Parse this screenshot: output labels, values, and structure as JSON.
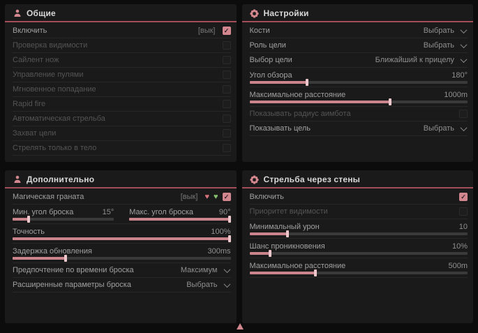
{
  "theme": {
    "accent": "#d2868e",
    "header_underline": "#a14e58",
    "panel_bg": "#1a1a1a",
    "page_bg": "#0c0c0c"
  },
  "panels": [
    {
      "title": "Общие",
      "icon": "person-icon",
      "rows": [
        {
          "type": "toggle",
          "label": "Включить",
          "tag": "[вык]",
          "checked": true,
          "enabled": true
        },
        {
          "type": "toggle",
          "label": "Проверка видимости",
          "checked": false,
          "enabled": false
        },
        {
          "type": "toggle",
          "label": "Сайлент нож",
          "checked": false,
          "enabled": false
        },
        {
          "type": "toggle",
          "label": "Управление пулями",
          "checked": false,
          "enabled": false
        },
        {
          "type": "toggle",
          "label": "Мгновенное попадание",
          "checked": false,
          "enabled": false
        },
        {
          "type": "toggle",
          "label": "Rapid fire",
          "checked": false,
          "enabled": false
        },
        {
          "type": "toggle",
          "label": "Автоматическая стрельба",
          "checked": false,
          "enabled": false
        },
        {
          "type": "toggle",
          "label": "Захват цели",
          "checked": false,
          "enabled": false
        },
        {
          "type": "toggle",
          "label": "Стрелять только в тело",
          "checked": false,
          "enabled": false
        }
      ]
    },
    {
      "title": "Настройки",
      "icon": "gear-icon",
      "rows": [
        {
          "type": "combo",
          "label": "Кости",
          "value": "Выбрать"
        },
        {
          "type": "combo",
          "label": "Роль цели",
          "value": "Выбрать"
        },
        {
          "type": "combo",
          "label": "Выбор цели",
          "value": "Ближайший к прицелу"
        },
        {
          "type": "slider",
          "label": "Угол обзора",
          "value": "180°",
          "fill": 27
        },
        {
          "type": "slider",
          "label": "Максимальное расстояние",
          "value": "1000m",
          "fill": 65
        },
        {
          "type": "toggle",
          "label": "Показывать радиус аимбота",
          "checked": false,
          "enabled": false
        },
        {
          "type": "combo",
          "label": "Показывать цель",
          "value": "Выбрать"
        }
      ]
    },
    {
      "title": "Дополнительно",
      "icon": "person-icon",
      "rows": [
        {
          "type": "toggle-icons",
          "label": "Магическая граната",
          "tag": "[вык]",
          "icons": [
            {
              "name": "heart-crossed-icon",
              "glyph": "♥",
              "color": "pink"
            },
            {
              "name": "heart-check-icon",
              "glyph": "♥",
              "color": "green"
            }
          ],
          "checked": true,
          "enabled": true
        },
        {
          "type": "slider-pair",
          "left": {
            "label": "Мин. угол броска",
            "value": "15°",
            "fill": 17
          },
          "right": {
            "label": "Макс. угол броска",
            "value": "90°",
            "fill": 100
          }
        },
        {
          "type": "slider",
          "label": "Точность",
          "value": "100%",
          "fill": 100
        },
        {
          "type": "slider",
          "label": "Задержка обновления",
          "value": "300ms",
          "fill": 25
        },
        {
          "type": "combo",
          "label": "Предпочтение по времени броска",
          "value": "Максимум"
        },
        {
          "type": "combo",
          "label": "Расширенные параметры броска",
          "value": "Выбрать"
        }
      ]
    },
    {
      "title": "Стрельба через стены",
      "icon": "gear-icon",
      "rows": [
        {
          "type": "toggle",
          "label": "Включить",
          "checked": true,
          "enabled": true
        },
        {
          "type": "toggle",
          "label": "Приоритет видимости",
          "checked": false,
          "enabled": false
        },
        {
          "type": "slider",
          "label": "Минимальный урон",
          "value": "10",
          "fill": 18
        },
        {
          "type": "slider",
          "label": "Шанс проникновения",
          "value": "10%",
          "fill": 10
        },
        {
          "type": "slider",
          "label": "Максимальное расстояние",
          "value": "500m",
          "fill": 31
        }
      ]
    }
  ],
  "checkmark": "✓",
  "pointer": {
    "visible": true
  }
}
